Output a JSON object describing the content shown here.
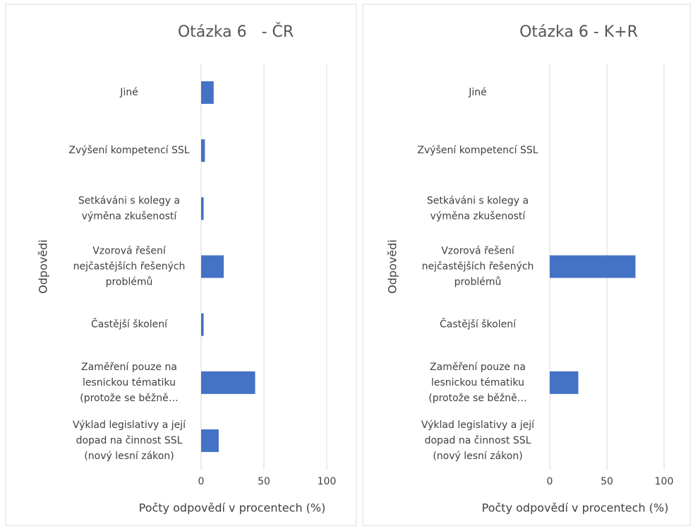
{
  "chart_data": [
    {
      "type": "bar",
      "orientation": "horizontal",
      "title": "Otázka 6   - ČR",
      "categories": [
        "Jiné",
        "Zvýšení kompetencí SSL",
        "Setkáváni s kolegy a výměna zkušeností",
        "Vzorová řešení nejčastějších řešených problémů",
        "Častější školení",
        "Zaměření pouze na lesnickou tématiku (protože se běžně…",
        "Výklad legislativy a její dopad na činnost SSL (nový lesní zákon)"
      ],
      "values": [
        10,
        3,
        2,
        18,
        2,
        43,
        14
      ],
      "color": "#4472c4",
      "xlim": [
        0,
        100
      ],
      "xticks": [
        0,
        50,
        100
      ],
      "grid": true,
      "xlabel": "Počty odpovědí v procentech (%)",
      "ylabel": "Odpovědi"
    },
    {
      "type": "bar",
      "orientation": "horizontal",
      "title": "Otázka 6 - K+R",
      "categories": [
        "Jiné",
        "Zvýšení kompetencí SSL",
        "Setkáváni s kolegy a výměna zkušeností",
        "Vzorová řešení nejčastějších řešených problémů",
        "Častější školení",
        "Zaměření pouze na lesnickou tématiku (protože se běžně…",
        "Výklad legislativy a její dopad na činnost SSL (nový lesní zákon)"
      ],
      "values": [
        0,
        0,
        0,
        75,
        0,
        25,
        0
      ],
      "color": "#4472c4",
      "xlim": [
        0,
        100
      ],
      "xticks": [
        0,
        50,
        100
      ],
      "grid": true,
      "xlabel": "Počty odpovědí v procentech (%)",
      "ylabel": "Odpovědi"
    }
  ]
}
